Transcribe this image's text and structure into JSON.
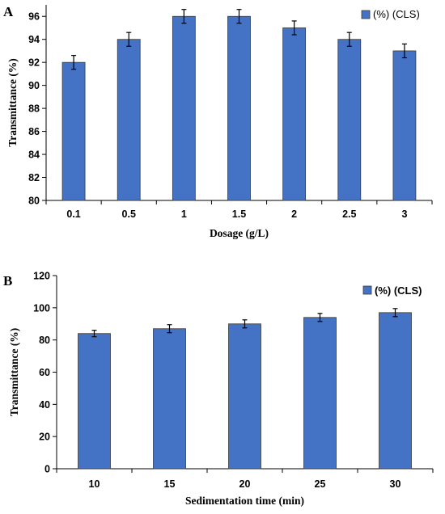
{
  "chart_data": [
    {
      "panel": "A",
      "type": "bar",
      "xlabel": "Dosage (g/L)",
      "ylabel": "Transmittance (%)",
      "categories": [
        "0.1",
        "0.5",
        "1",
        "1.5",
        "2",
        "2.5",
        "3"
      ],
      "series": [
        {
          "name": "(%) (CLS)",
          "values": [
            92,
            94,
            96,
            96,
            95,
            94,
            93
          ],
          "errors": [
            0.6,
            0.6,
            0.6,
            0.6,
            0.6,
            0.6,
            0.6
          ]
        }
      ],
      "ylim": [
        80,
        97
      ],
      "yticks": [
        "80",
        "82",
        "84",
        "86",
        "88",
        "90",
        "92",
        "94",
        "96"
      ],
      "grid": false,
      "legend_position": "top-right",
      "bar_color": "#4472c4"
    },
    {
      "panel": "B",
      "type": "bar",
      "xlabel": "Sedimentation time (min)",
      "ylabel": "Transmittance (%)",
      "categories": [
        "10",
        "15",
        "20",
        "25",
        "30"
      ],
      "series": [
        {
          "name": "(%) (CLS)",
          "values": [
            84,
            87,
            90,
            94,
            97
          ],
          "errors": [
            2,
            2.5,
            2.5,
            2.5,
            2.5
          ]
        }
      ],
      "ylim": [
        0,
        120
      ],
      "yticks": [
        "0",
        "20",
        "40",
        "60",
        "80",
        "100",
        "120"
      ],
      "grid": false,
      "legend_position": "top-right",
      "bar_color": "#4472c4"
    }
  ]
}
